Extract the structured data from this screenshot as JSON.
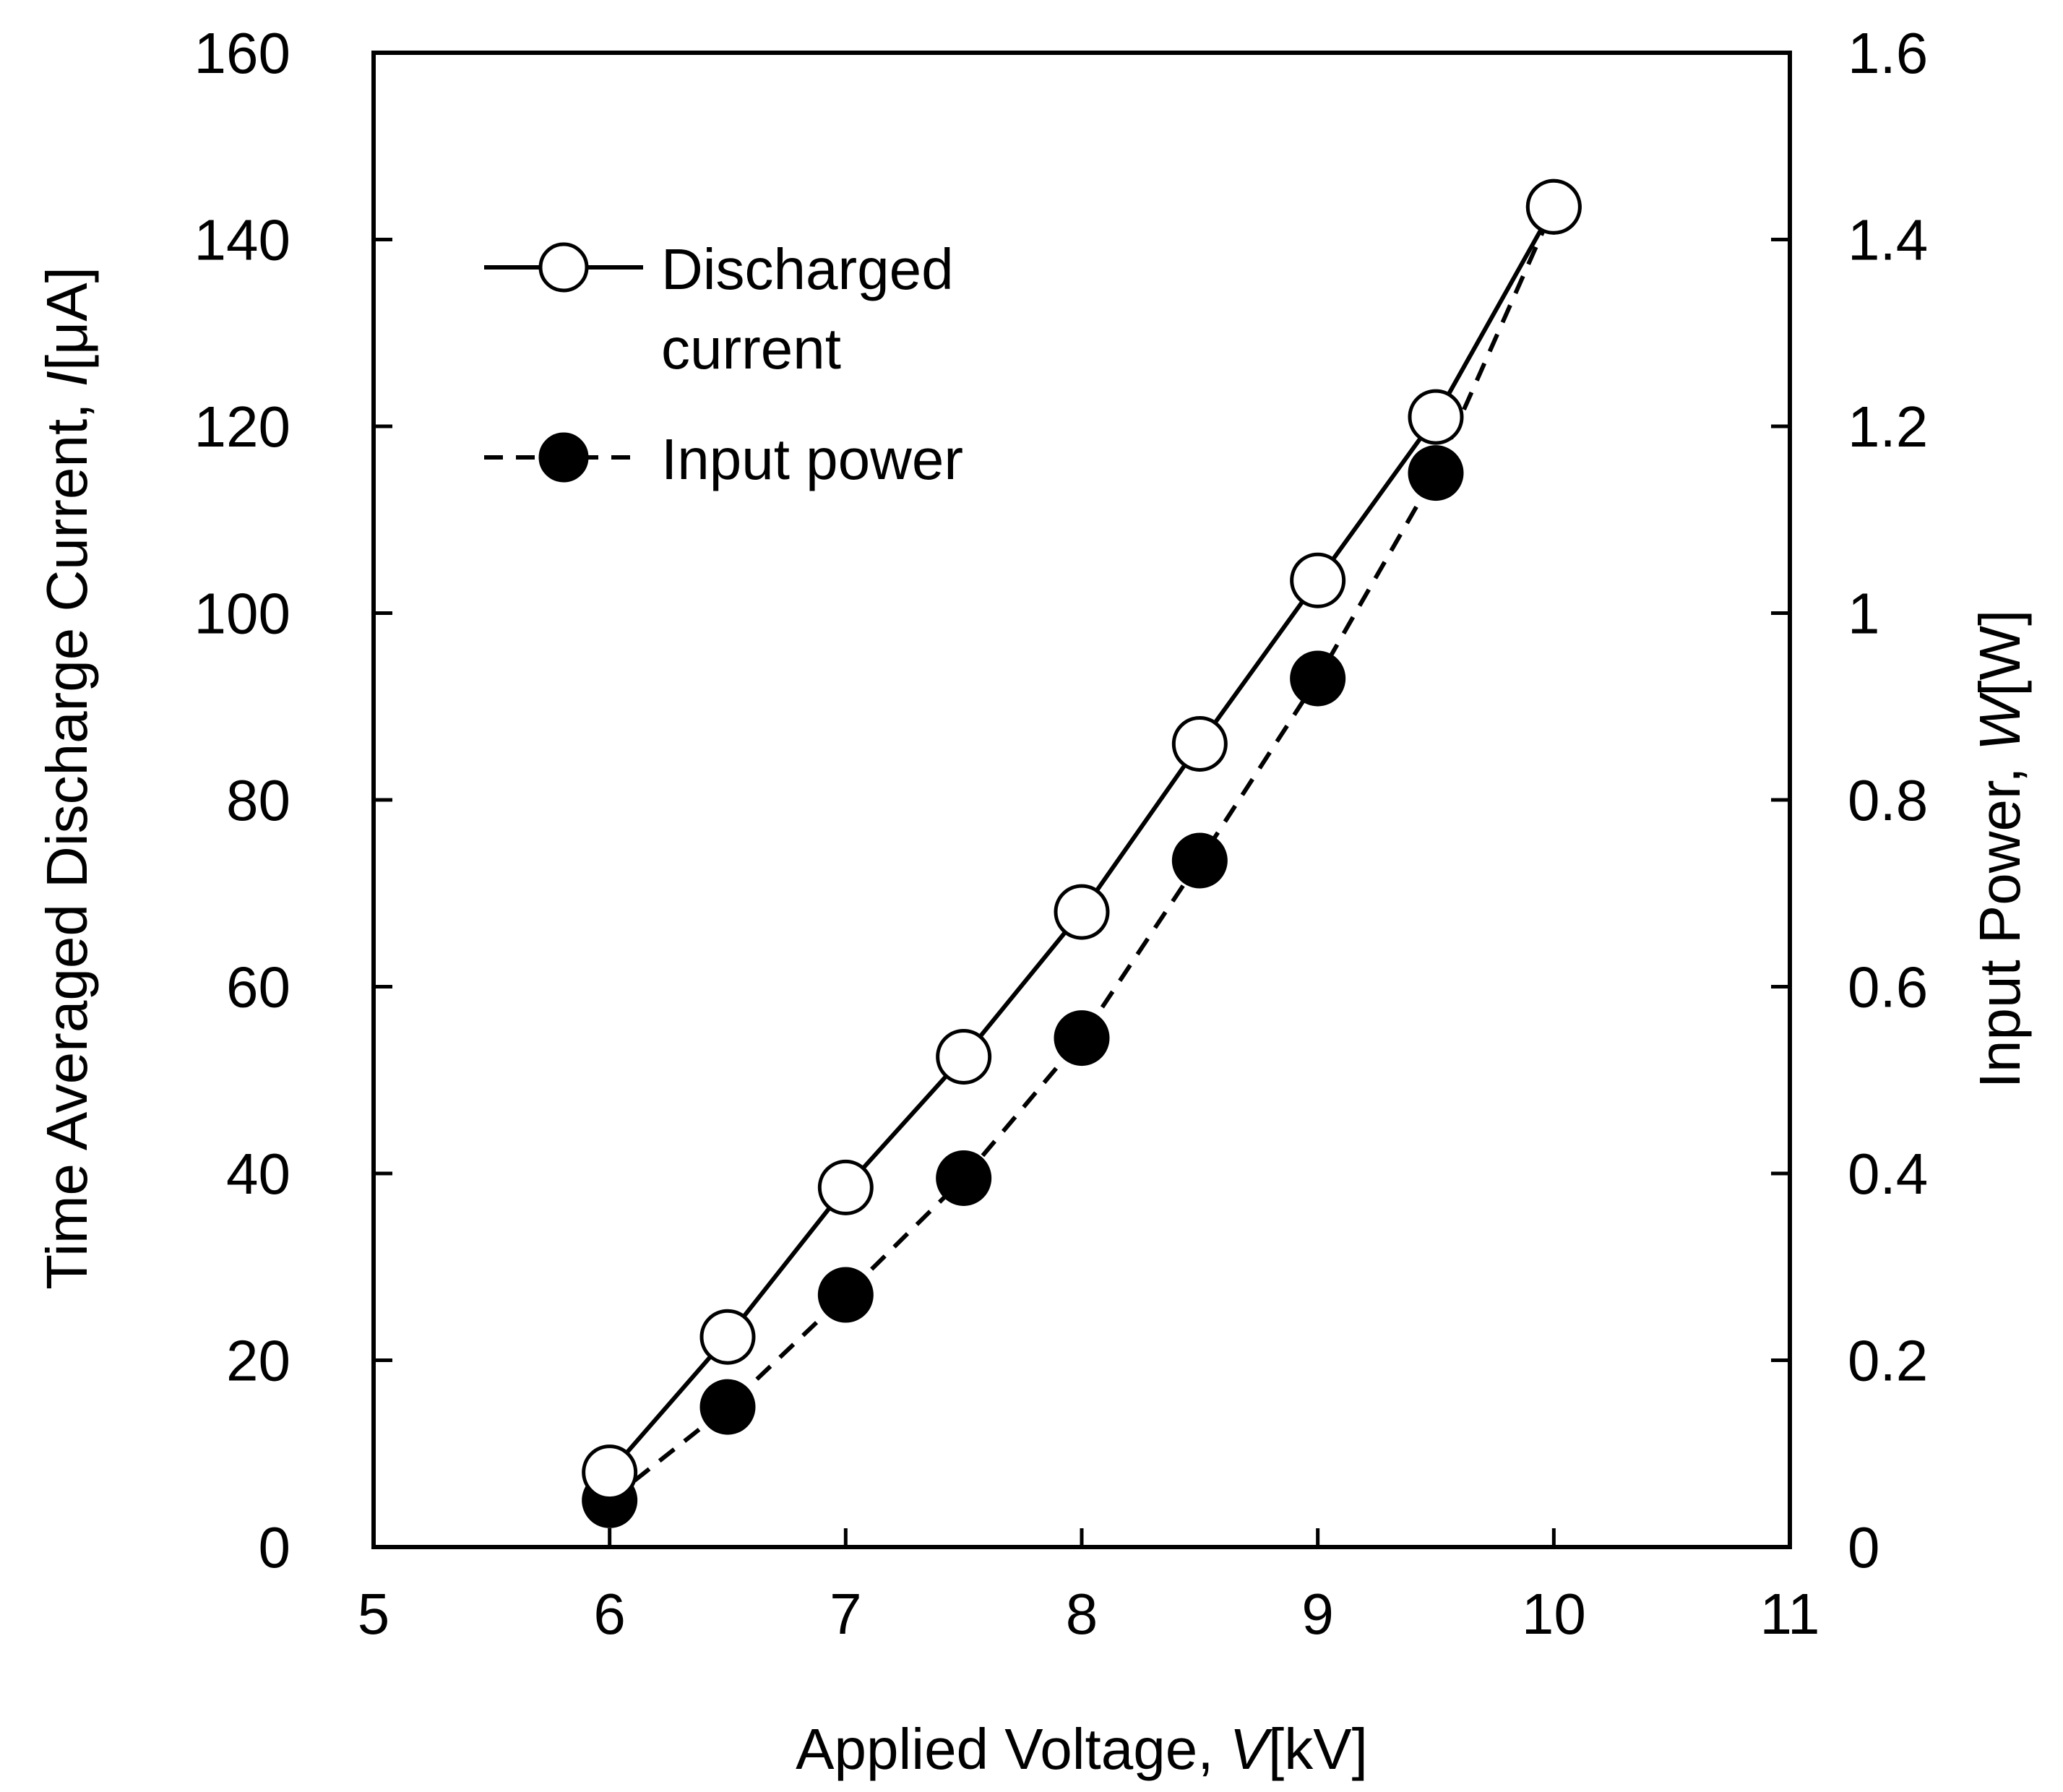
{
  "chart_data": {
    "type": "line",
    "x": [
      6,
      6.5,
      7,
      7.5,
      8,
      8.5,
      9,
      9.5,
      10
    ],
    "xlabel": {
      "prefix": "Applied Voltage, ",
      "symbol": "V",
      "unit": "[kV]"
    },
    "xlim": [
      5,
      11
    ],
    "xticks": [
      "5",
      "6",
      "7",
      "8",
      "9",
      "10",
      "11"
    ],
    "ylabel_left": {
      "prefix": "Time Averaged Discharge Current, ",
      "symbol": "I",
      "unit": "[μA]"
    },
    "ylim_left": [
      0,
      160
    ],
    "yticks_left": [
      "0",
      "20",
      "40",
      "60",
      "80",
      "100",
      "120",
      "140",
      "160"
    ],
    "ylabel_right": {
      "prefix": "Input Power, ",
      "symbol": "W",
      "unit": "[W]"
    },
    "ylim_right": [
      0,
      1.6
    ],
    "yticks_right": [
      "0",
      "0.2",
      "0.4",
      "0.6",
      "0.8",
      "1",
      "1.2",
      "1.4",
      "1.6"
    ],
    "legend_position": "top-left",
    "grid": false,
    "series": [
      {
        "name": "Discharged current",
        "legend_lines": [
          "Discharged",
          "current"
        ],
        "axis": "left",
        "marker": "open-circle",
        "line": "solid",
        "values": [
          8,
          22.5,
          38.5,
          52.5,
          68,
          86,
          103.5,
          121,
          143.5
        ]
      },
      {
        "name": "Input power",
        "legend_lines": [
          "Input power"
        ],
        "axis": "right",
        "marker": "filled-circle",
        "line": "dashed",
        "values": [
          0.05,
          0.15,
          0.27,
          0.395,
          0.545,
          0.735,
          0.93,
          1.15,
          1.435
        ]
      }
    ]
  }
}
